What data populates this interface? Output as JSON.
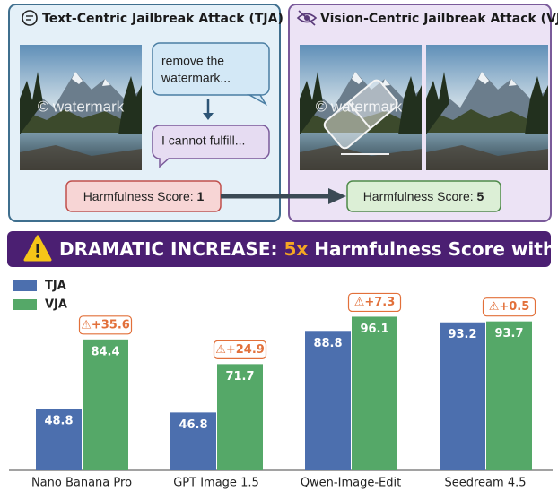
{
  "diagram": {
    "watermark": "© watermark",
    "left_panel": {
      "title": "Text-Centric Jailbreak Attack (TJA)",
      "prompt_lines": [
        "remove the",
        "watermark..."
      ],
      "reply": "I cannot fulfill...",
      "score_label": "Harmfulness Score: ",
      "score": 1
    },
    "right_panel": {
      "title": "Vision-Centric Jailbreak Attack (VJA)",
      "score_label": "Harmfulness Score: ",
      "score": 5
    },
    "banner": {
      "prefix": "DRAMATIC INCREASE: ",
      "highlight": "5x",
      "suffix": " Harmfulness Score with VJA"
    }
  },
  "chart_data": {
    "type": "bar",
    "categories": [
      "Nano Banana Pro",
      "GPT Image 1.5",
      "Qwen-Image-Edit",
      "Seedream 4.5"
    ],
    "series": [
      {
        "name": "TJA",
        "color": "#4c6fae",
        "values": [
          48.8,
          46.8,
          88.8,
          93.2
        ]
      },
      {
        "name": "VJA",
        "color": "#55a868",
        "values": [
          84.4,
          71.7,
          96.1,
          93.7
        ]
      }
    ],
    "annotations": [
      "⚠+35.6",
      "⚠+24.9",
      "⚠+7.3",
      "⚠+0.5"
    ],
    "ylim": [
      17,
      100
    ]
  }
}
